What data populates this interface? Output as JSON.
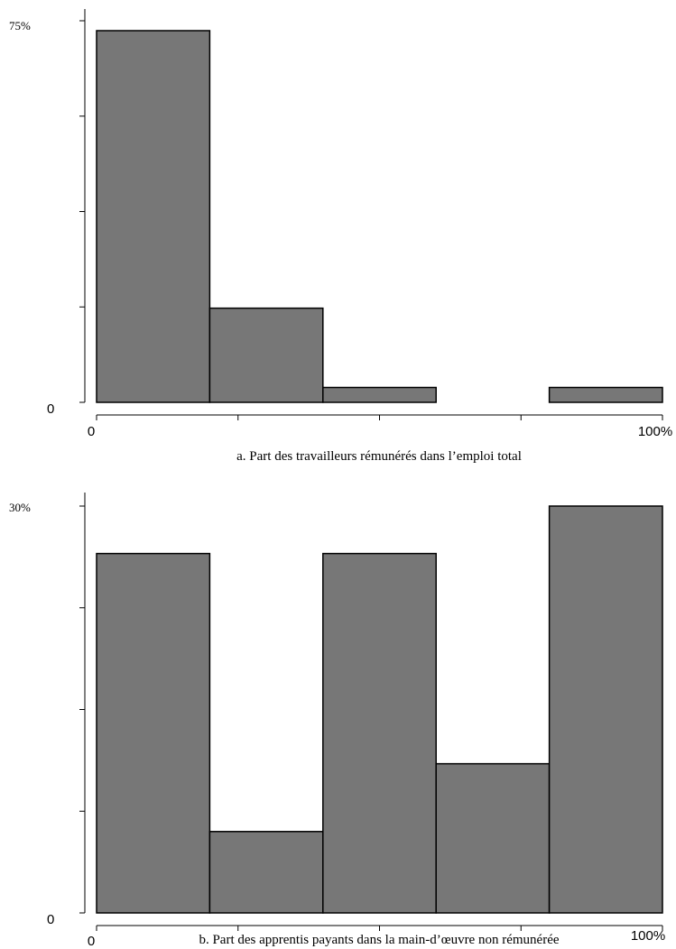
{
  "chart_data": [
    {
      "type": "bar",
      "caption": "a. Part des travailleurs rémunérés dans l’emploi total",
      "categories": [
        "0–20%",
        "20–40%",
        "40–60%",
        "60–80%",
        "80–100%"
      ],
      "values": [
        75,
        19,
        3,
        0,
        3
      ],
      "ylim": [
        0,
        77
      ],
      "y_tick_count": 5,
      "ytick_labels": {
        "top": "75%",
        "bottom": "0"
      },
      "x_tick_count": 5,
      "xtick_labels": {
        "left": "0",
        "right": "100%"
      },
      "bar_color": "#777777",
      "grid": false
    },
    {
      "type": "bar",
      "caption": "b. Part des apprentis payants dans la main-d’œuvre non rémunérée",
      "categories": [
        "0–20%",
        "20–40%",
        "40–60%",
        "60–80%",
        "80–100%"
      ],
      "values": [
        26.5,
        6,
        26.5,
        11,
        30
      ],
      "ylim": [
        0,
        30
      ],
      "y_tick_count": 5,
      "ytick_labels": {
        "top": "30%",
        "bottom": "0"
      },
      "x_tick_count": 5,
      "xtick_labels": {
        "left": "0",
        "right": "100%"
      },
      "bar_color": "#777777",
      "grid": false
    }
  ]
}
